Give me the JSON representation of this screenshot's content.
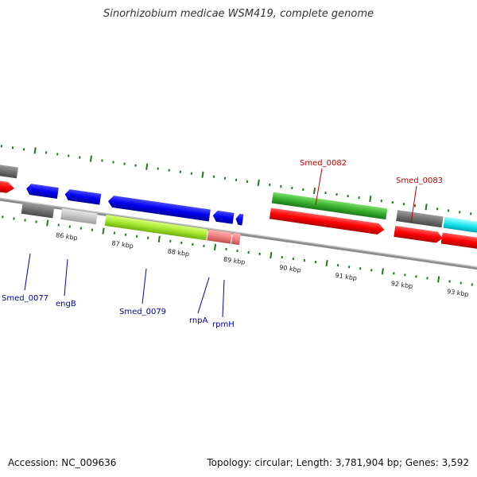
{
  "title": "Sinorhizobium medicae WSM419, complete genome",
  "footer": {
    "accession": "Accession: NC_009636",
    "summary": "Topology: circular; Length: 3,781,904 bp; Genes: 3,592"
  },
  "colors": {
    "backbone": "#8c8c8c",
    "tick": "#1f7a1f",
    "label_forward_strand": "#c00000",
    "label_reverse_strand": "#0000aa"
  },
  "ticks": [
    {
      "label": "86 kbp"
    },
    {
      "label": "87 kbp"
    },
    {
      "label": "88 kbp"
    },
    {
      "label": "89 kbp"
    },
    {
      "label": "90 kbp"
    },
    {
      "label": "91 kbp"
    },
    {
      "label": "92 kbp"
    },
    {
      "label": "93 kbp"
    }
  ],
  "gene_labels": [
    {
      "name": "Smed_0077",
      "icon": "gene-label"
    },
    {
      "name": "engB",
      "icon": "gene-label"
    },
    {
      "name": "Smed_0079",
      "icon": "gene-label"
    },
    {
      "name": "rnpA",
      "icon": "gene-label"
    },
    {
      "name": "rpmH",
      "icon": "gene-label"
    },
    {
      "name": "Smed_0082",
      "icon": "gene-label"
    },
    {
      "name": "Smed_0083",
      "icon": "gene-label"
    }
  ]
}
